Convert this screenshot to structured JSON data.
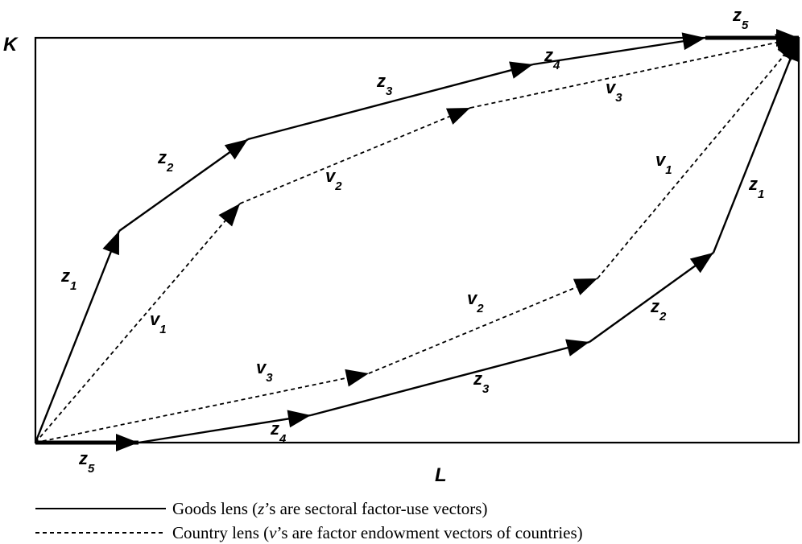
{
  "axes": {
    "vertical_label": "K",
    "horizontal_label": "L"
  },
  "vectors": {
    "goods_upper": [
      {
        "name": "z",
        "sub": "1"
      },
      {
        "name": "z",
        "sub": "2"
      },
      {
        "name": "z",
        "sub": "3"
      },
      {
        "name": "z",
        "sub": "4"
      },
      {
        "name": "z",
        "sub": "5"
      }
    ],
    "goods_lower": [
      {
        "name": "z",
        "sub": "5"
      },
      {
        "name": "z",
        "sub": "4"
      },
      {
        "name": "z",
        "sub": "3"
      },
      {
        "name": "z",
        "sub": "2"
      },
      {
        "name": "z",
        "sub": "1"
      }
    ],
    "country_upper": [
      {
        "name": "v",
        "sub": "1"
      },
      {
        "name": "v",
        "sub": "2"
      },
      {
        "name": "v",
        "sub": "3"
      }
    ],
    "country_lower": [
      {
        "name": "v",
        "sub": "3"
      },
      {
        "name": "v",
        "sub": "2"
      },
      {
        "name": "v",
        "sub": "1"
      }
    ]
  },
  "legend": {
    "goods": {
      "text_before": "Goods lens  (",
      "symbol": "z",
      "text_after": "’s are sectoral factor-use vectors)"
    },
    "country": {
      "text_before": "Country lens (",
      "symbol": "v",
      "text_after": "’s are factor endowment vectors of countries)"
    }
  },
  "colors": {
    "line": "#000000",
    "background": "#ffffff"
  }
}
